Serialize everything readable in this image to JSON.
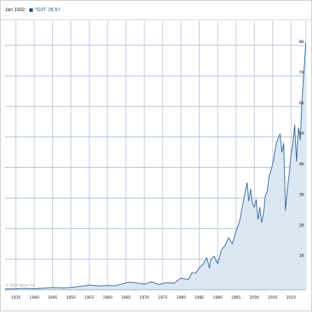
{
  "legend": {
    "date": "Jan 1932:",
    "series": "^DJT",
    "value": "26.57",
    "swatch_color": "#1d4f86"
  },
  "copyright": "© 2014 Yahoo! Inc.",
  "chart_data": {
    "type": "area",
    "title": "",
    "xlabel": "",
    "ylabel": "",
    "x_ticks": [
      "1935",
      "1940",
      "1945",
      "1950",
      "1955",
      "1960",
      "1965",
      "1970",
      "1975",
      "1980",
      "1985",
      "1990",
      "1995",
      "2000",
      "2005",
      "2010"
    ],
    "y_ticks": [
      "1K",
      "2K",
      "3K",
      "4K",
      "5K",
      "6K",
      "7K",
      "8K"
    ],
    "xlim": [
      1932,
      2014
    ],
    "ylim": [
      0,
      8800
    ],
    "grid": true,
    "legend_position": "top-left",
    "line_color": "#2f5f92",
    "fill_color": "#dbe8f4",
    "series": [
      {
        "name": "^DJT",
        "x": [
          1932,
          1935,
          1937,
          1940,
          1943,
          1945,
          1948,
          1950,
          1952,
          1955,
          1958,
          1960,
          1962,
          1964,
          1966,
          1968,
          1970,
          1972,
          1974,
          1976,
          1978,
          1980,
          1982,
          1983,
          1984,
          1985,
          1986,
          1987,
          1987.8,
          1988,
          1989,
          1990,
          1991,
          1992,
          1993,
          1994,
          1995,
          1996,
          1997,
          1998,
          1998.5,
          1999,
          1999.5,
          2000,
          2000.5,
          2001,
          2001.5,
          2002,
          2002.5,
          2003,
          2003.5,
          2004,
          2005,
          2006,
          2007,
          2007.5,
          2008,
          2008.5,
          2009,
          2009.5,
          2010,
          2010.5,
          2011,
          2011.5,
          2012,
          2012.5,
          2013,
          2013.5,
          2014
        ],
        "y": [
          27,
          30,
          45,
          35,
          55,
          70,
          60,
          75,
          100,
          150,
          120,
          140,
          130,
          190,
          250,
          220,
          180,
          260,
          170,
          230,
          210,
          380,
          330,
          560,
          540,
          720,
          830,
          1050,
          700,
          950,
          1100,
          850,
          1300,
          1450,
          1700,
          1500,
          1900,
          2250,
          2900,
          3500,
          2900,
          3300,
          2800,
          2700,
          2950,
          2300,
          2700,
          2200,
          2500,
          3100,
          3200,
          3700,
          4100,
          4800,
          5100,
          4500,
          4800,
          2600,
          3300,
          3800,
          4400,
          4800,
          5400,
          4200,
          5300,
          4900,
          6200,
          7100,
          8100
        ]
      }
    ]
  }
}
